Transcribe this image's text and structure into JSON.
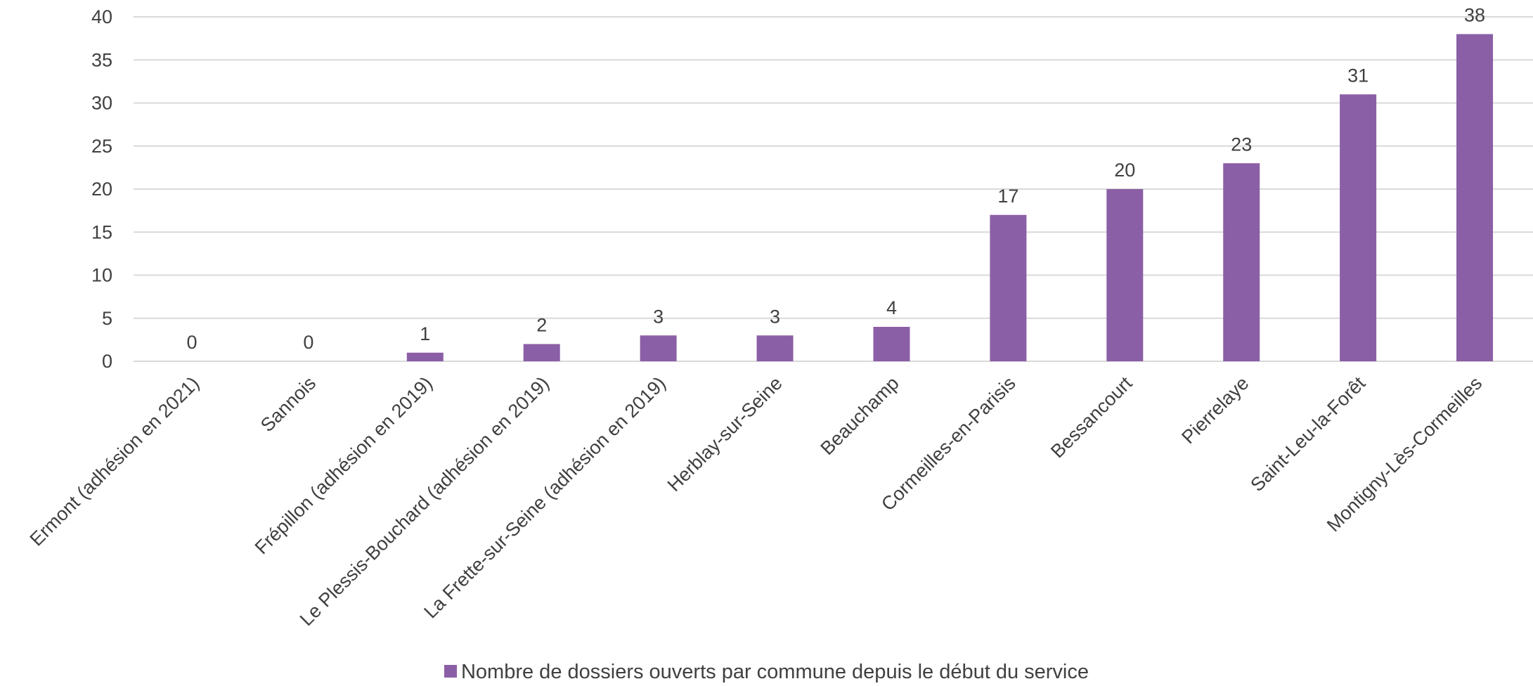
{
  "chart_data": {
    "type": "bar",
    "categories": [
      "Ermont (adhésion en 2021)",
      "Sannois",
      "Frépillon (adhésion en 2019)",
      "Le Plessis-Bouchard (adhésion en 2019)",
      "La Frette-sur-Seine (adhésion en 2019)",
      "Herblay-sur-Seine",
      "Beauchamp",
      "Cormeilles-en-Parisis",
      "Bessancourt",
      "Pierrelaye",
      "Saint-Leu-la-Forêt",
      "Montigny-Lès-Cormeilles"
    ],
    "series": [
      {
        "name": "Nombre de dossiers ouverts par commune depuis le début du service",
        "values": [
          0,
          0,
          1,
          2,
          3,
          3,
          4,
          17,
          20,
          23,
          31,
          38
        ],
        "color": "#8B5FA6"
      }
    ],
    "ylim": [
      0,
      40
    ],
    "yticks": [
      "0",
      "5",
      "10",
      "15",
      "20",
      "25",
      "30",
      "35",
      "40"
    ],
    "grid": true,
    "legend_position": "bottom",
    "data_labels": true
  }
}
